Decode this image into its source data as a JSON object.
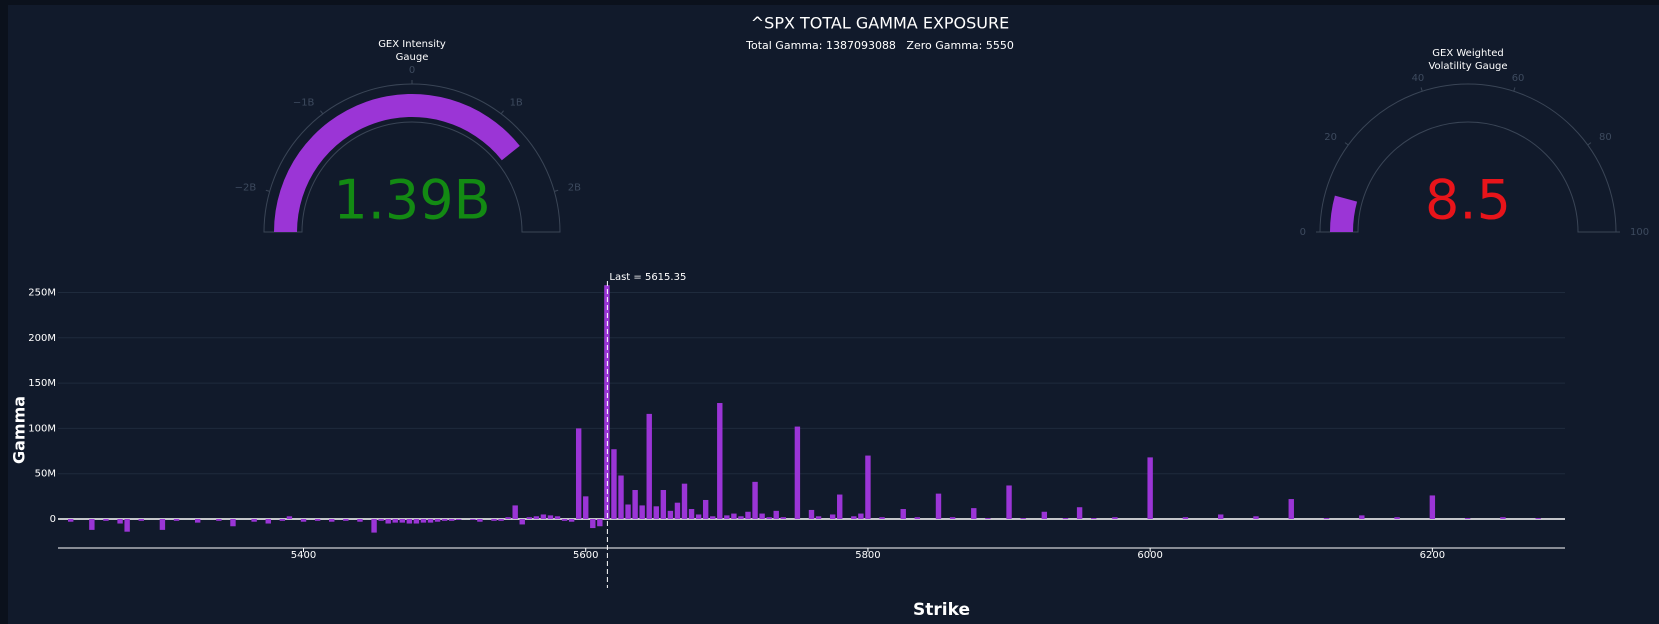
{
  "chart_data": [
    {
      "type": "bar",
      "title": "^SPX TOTAL GAMMA EXPOSURE",
      "subtitle": "Total Gamma: 1387093088   Zero Gamma: 5550",
      "x_label": "Strike",
      "y_label": "Gamma",
      "xlim": [
        5226,
        6294
      ],
      "ylim": [
        -32000000,
        277000000
      ],
      "xticks": [
        5400,
        5600,
        5800,
        6000,
        6200
      ],
      "yticks": [
        0,
        {
          "value": 50000000,
          "label": "50M"
        },
        {
          "value": 100000000,
          "label": "100M"
        },
        {
          "value": 150000000,
          "label": "150M"
        },
        {
          "value": 200000000,
          "label": "200M"
        },
        {
          "value": 250000000,
          "label": "250M"
        }
      ],
      "grid": true,
      "annotation": {
        "value": 5615.35,
        "label": "Last = 5615.35"
      },
      "series": [
        {
          "name": "Gamma",
          "color": "#9b35d6",
          "x": [
            5235,
            5250,
            5260,
            5270,
            5275,
            5285,
            5300,
            5310,
            5325,
            5340,
            5350,
            5365,
            5375,
            5385,
            5390,
            5400,
            5410,
            5420,
            5430,
            5440,
            5450,
            5455,
            5460,
            5465,
            5470,
            5475,
            5480,
            5485,
            5490,
            5495,
            5500,
            5505,
            5510,
            5520,
            5525,
            5535,
            5540,
            5545,
            5550,
            5555,
            5560,
            5565,
            5570,
            5575,
            5580,
            5585,
            5590,
            5595,
            5600,
            5605,
            5610,
            5615,
            5620,
            5625,
            5630,
            5635,
            5640,
            5645,
            5650,
            5655,
            5660,
            5665,
            5670,
            5675,
            5680,
            5685,
            5690,
            5695,
            5700,
            5705,
            5710,
            5715,
            5720,
            5725,
            5730,
            5735,
            5740,
            5750,
            5760,
            5765,
            5775,
            5780,
            5790,
            5795,
            5800,
            5810,
            5825,
            5835,
            5850,
            5860,
            5875,
            5885,
            5900,
            5910,
            5925,
            5940,
            5950,
            5960,
            5975,
            6000,
            6025,
            6050,
            6075,
            6100,
            6125,
            6150,
            6175,
            6200,
            6225,
            6250,
            6275
          ],
          "values": [
            -3000000,
            -12000000,
            -2000000,
            -5000000,
            -14000000,
            -2000000,
            -12000000,
            -2000000,
            -4000000,
            -2000000,
            -8000000,
            -3000000,
            -5000000,
            -2000000,
            3000000,
            -3000000,
            -2000000,
            -3000000,
            -2000000,
            -3000000,
            -15000000,
            -2000000,
            -5000000,
            -4000000,
            -4000000,
            -5000000,
            -5000000,
            -4000000,
            -4000000,
            -3000000,
            -2000000,
            -2000000,
            -1000000,
            -1000000,
            -3000000,
            -2000000,
            -2000000,
            2000000,
            15000000,
            -6000000,
            2000000,
            3000000,
            5000000,
            4000000,
            3000000,
            -2000000,
            -3000000,
            100000000,
            25000000,
            -10000000,
            -8000000,
            258000000,
            77000000,
            48000000,
            16000000,
            32000000,
            15000000,
            116000000,
            14000000,
            32000000,
            9000000,
            18000000,
            39000000,
            11000000,
            5000000,
            21000000,
            3000000,
            128000000,
            4000000,
            6000000,
            3000000,
            8000000,
            41000000,
            6000000,
            2000000,
            9000000,
            2000000,
            102000000,
            10000000,
            3000000,
            5000000,
            27000000,
            3000000,
            6000000,
            70000000,
            2000000,
            11000000,
            2000000,
            28000000,
            2000000,
            12000000,
            1000000,
            37000000,
            1000000,
            8000000,
            1000000,
            13000000,
            1000000,
            2000000,
            68000000,
            2000000,
            5000000,
            3000000,
            22000000,
            1000000,
            4000000,
            2000000,
            26000000,
            1000000,
            2000000,
            1000000
          ]
        }
      ]
    },
    {
      "type": "gauge",
      "title": [
        "GEX Intensity",
        "Gauge"
      ],
      "value": 1387093088,
      "value_label": "1.39B",
      "value_color": "#138a13",
      "color": "#9b35d6",
      "lim": [
        -2430000000,
        2430000000
      ],
      "ticks": [
        {
          "value": -2000000000,
          "label": "−2B"
        },
        {
          "value": -1000000000,
          "label": "−1B"
        },
        0,
        {
          "value": 1000000000,
          "label": "1B"
        },
        {
          "value": 2000000000,
          "label": "2B"
        }
      ]
    },
    {
      "type": "gauge",
      "title": [
        "GEX Weighted",
        "Volatility Gauge"
      ],
      "value": 8.5,
      "value_color": "#e8141a",
      "color": "#9b35d6",
      "lim": [
        0,
        100
      ],
      "ticks": [
        0,
        20,
        40,
        60,
        80,
        100
      ]
    }
  ]
}
